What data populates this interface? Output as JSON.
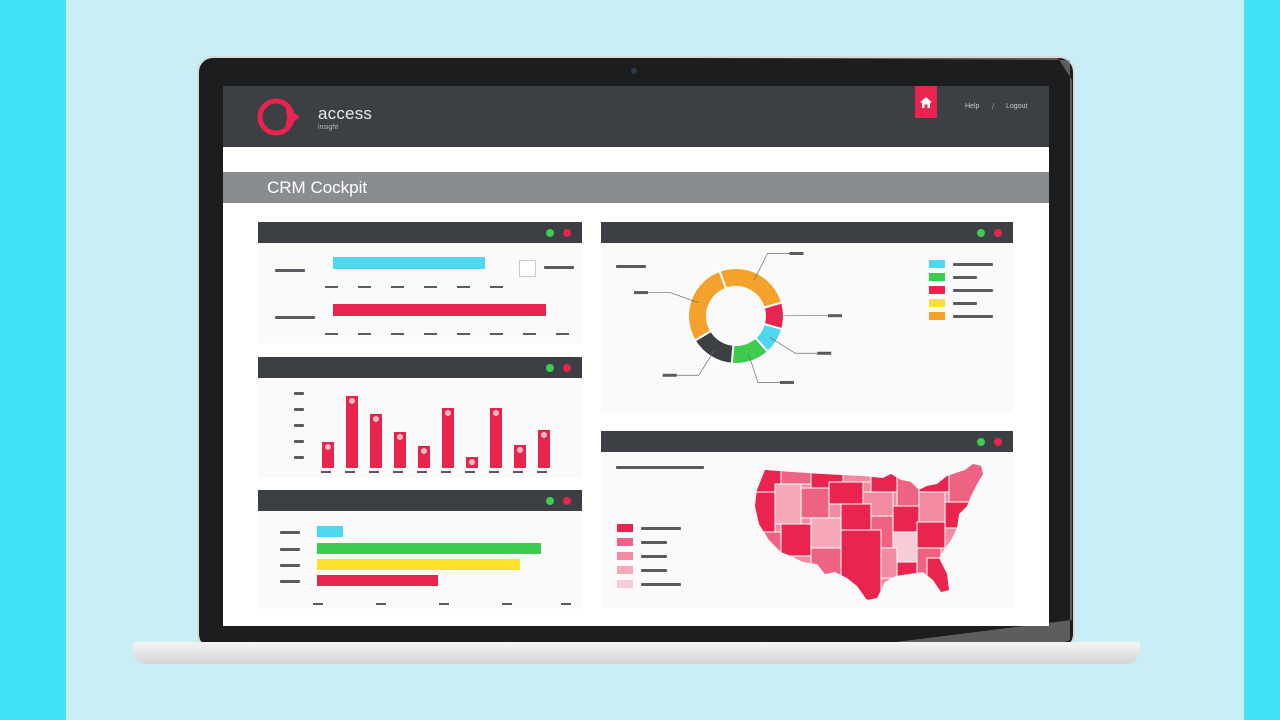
{
  "app": {
    "brand": "access",
    "brand_sub": "insight",
    "nav": {
      "help": "Help",
      "separator": "/",
      "logout": "Logout"
    },
    "page_title": "CRM Cockpit"
  },
  "colors": {
    "accent": "#e8244f",
    "cyan": "#4dd8f0",
    "green": "#3ccd4e",
    "yellow": "#ffe02a",
    "orange": "#f5a22d",
    "dark": "#3c3f44",
    "red": "#e8244f"
  },
  "icons": {
    "home": "home-icon",
    "status_ok": "green-dot-icon",
    "status_close": "red-dot-icon"
  },
  "chart_data": [
    {
      "type": "bar",
      "orientation": "horizontal",
      "values": [
        0.6,
        0.84
      ],
      "colors": [
        "#4dd8f0",
        "#e8244f"
      ]
    },
    {
      "type": "bar",
      "values": [
        24,
        66,
        50,
        33,
        20,
        55,
        10,
        55,
        21,
        35
      ],
      "ylim": [
        0,
        70
      ]
    },
    {
      "type": "bar",
      "orientation": "horizontal",
      "values": [
        0.11,
        0.96,
        0.87,
        0.52
      ],
      "colors": [
        "#4dd8f0",
        "#3ccd4e",
        "#ffe02a",
        "#e8244f"
      ]
    },
    {
      "type": "pie",
      "donut": true,
      "values": [
        26,
        9,
        9,
        13,
        15,
        28
      ],
      "colors": [
        "#f5a22d",
        "#e8244f",
        "#4dd8f0",
        "#3ccd4e",
        "#3c3f44",
        "#f5a22d"
      ]
    },
    {
      "type": "heatmap",
      "map": "usa",
      "legend_shades": [
        "#e8244f",
        "#ef6382",
        "#f28aa1",
        "#f5a9ba",
        "#f9cbd6"
      ]
    }
  ]
}
